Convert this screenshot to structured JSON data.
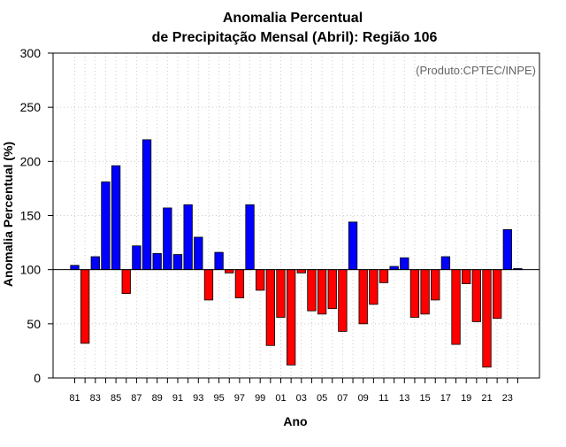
{
  "chart_data": {
    "type": "bar",
    "title": "Anomalia Percentual",
    "subtitle": "de Precipitação Mensal (Abril): Região 106",
    "xlabel": "Ano",
    "ylabel": "Anomalia Percentual (%)",
    "annotation": "(Produto:CPTEC/INPE)",
    "baseline": 100,
    "ylim": [
      0,
      300
    ],
    "yticks": [
      0,
      50,
      100,
      150,
      200,
      250,
      300
    ],
    "grid": true,
    "colors": {
      "above": "#0000ff",
      "below": "#ff0000",
      "grid": "#cccccc",
      "annotation": "#666666"
    },
    "categories": [
      "81",
      "82",
      "83",
      "84",
      "85",
      "86",
      "87",
      "88",
      "89",
      "90",
      "91",
      "92",
      "93",
      "94",
      "95",
      "96",
      "97",
      "98",
      "99",
      "00",
      "01",
      "02",
      "03",
      "04",
      "05",
      "06",
      "07",
      "08",
      "09",
      "10",
      "11",
      "12",
      "13",
      "14",
      "15",
      "16",
      "17",
      "18",
      "19",
      "20",
      "21",
      "22",
      "23",
      "24"
    ],
    "values": [
      104,
      32,
      112,
      181,
      196,
      78,
      122,
      220,
      115,
      157,
      114,
      160,
      130,
      72,
      116,
      97,
      74,
      160,
      81,
      30,
      56,
      12,
      97,
      62,
      59,
      64,
      43,
      144,
      50,
      68,
      88,
      103,
      111,
      56,
      59,
      72,
      112,
      31,
      87,
      52,
      10,
      55,
      137,
      101
    ],
    "xtick_labels": [
      "81",
      "83",
      "85",
      "87",
      "89",
      "91",
      "93",
      "95",
      "97",
      "99",
      "01",
      "03",
      "05",
      "07",
      "09",
      "11",
      "13",
      "15",
      "17",
      "19",
      "21",
      "23"
    ]
  }
}
